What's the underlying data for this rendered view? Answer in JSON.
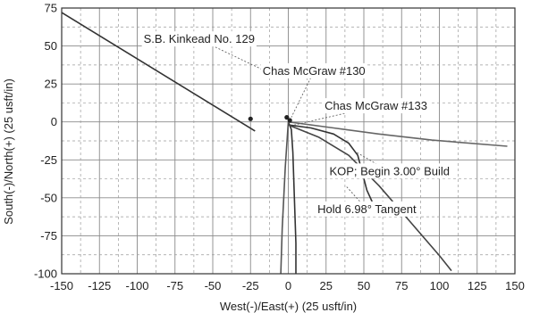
{
  "chart_data": {
    "type": "line",
    "xlabel": "West(-)/East(+) (25 usft/in)",
    "ylabel": "South(-)/North(+) (25 usft/in)",
    "xlim": [
      -150,
      150
    ],
    "ylim": [
      -100,
      75
    ],
    "x_ticks": [
      -150,
      -125,
      -100,
      -75,
      -50,
      -25,
      0,
      25,
      50,
      75,
      100,
      125,
      150
    ],
    "x_tick_labels": [
      "-150",
      "-125",
      "-100",
      "-75",
      "-50",
      "-25",
      "0",
      "25",
      "50",
      "75",
      "100",
      "125",
      "150"
    ],
    "y_ticks": [
      75,
      50,
      25,
      0,
      -25,
      -50,
      -75,
      -100
    ],
    "y_tick_labels": [
      "75",
      "50",
      "25",
      "0",
      "-25",
      "-50",
      "-75",
      "-100"
    ],
    "grid": true,
    "series": [
      {
        "x": [
          -150,
          -22
        ],
        "y": [
          72,
          -6
        ],
        "color": "#333333"
      },
      {
        "x": [
          0,
          2,
          3,
          4,
          5,
          5
        ],
        "y": [
          0,
          -5,
          -20,
          -50,
          -80,
          -100
        ],
        "color": "#333333"
      },
      {
        "x": [
          0,
          -2,
          -4,
          -5
        ],
        "y": [
          0,
          -30,
          -70,
          -100
        ],
        "color": "#555555"
      },
      {
        "x": [
          0,
          15,
          30,
          40,
          46,
          52,
          58
        ],
        "y": [
          -2,
          -4,
          -8,
          -14,
          -22,
          -45,
          -58
        ],
        "color": "#333333"
      },
      {
        "x": [
          0,
          20,
          40,
          60,
          80,
          100,
          108
        ],
        "y": [
          -2,
          -10,
          -22,
          -42,
          -65,
          -88,
          -98
        ],
        "color": "#444444"
      },
      {
        "x": [
          0,
          30,
          60,
          95,
          145
        ],
        "y": [
          0,
          -4,
          -8,
          -12,
          -16
        ],
        "color": "#666666"
      }
    ],
    "markers": [
      {
        "x": -25,
        "y": 2
      },
      {
        "x": -1,
        "y": 3
      },
      {
        "x": 1,
        "y": 1
      }
    ],
    "annotations": [
      {
        "text": "S.B. Kinkead No. 129",
        "x": -59,
        "y": 52,
        "px": -12,
        "py": 32
      },
      {
        "text": "Chas McGraw #130",
        "x": 17,
        "y": 31,
        "px": 2,
        "py": 3
      },
      {
        "text": "Chas McGraw #133",
        "x": 58,
        "y": 8,
        "px": 4,
        "py": -2
      },
      {
        "text": "KOP; Begin 3.00° Build",
        "x": 67,
        "y": -35,
        "px": 45,
        "py": -20
      },
      {
        "text": "Hold 6.98° Tangent",
        "x": 52,
        "y": -60,
        "px": 38,
        "py": -42
      }
    ]
  }
}
